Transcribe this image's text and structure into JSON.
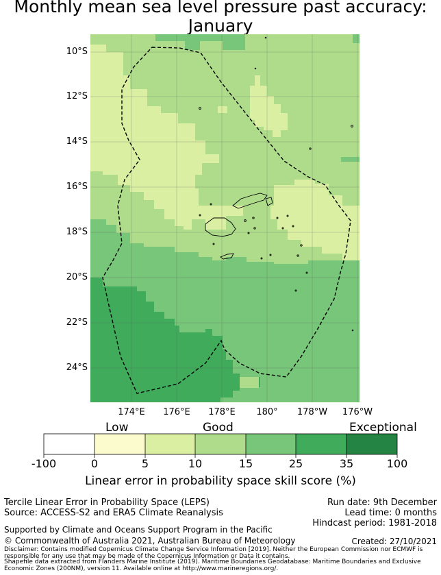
{
  "title": {
    "line1": "Monthly mean sea level pressure past accuracy:",
    "line2": "January"
  },
  "map": {
    "lat_labels": [
      "10°S",
      "12°S",
      "14°S",
      "16°S",
      "18°S",
      "20°S",
      "22°S",
      "24°S"
    ],
    "lon_labels": [
      "174°E",
      "176°E",
      "178°E",
      "180°",
      "178°W",
      "176°W"
    ],
    "category_colors": {
      "low": "#fbfbcd",
      "c5_10": "#dbefa3",
      "c10_15": "#aedc8b",
      "c15_25": "#77c679",
      "c25_35": "#40ab5b",
      "exceptional": "#238443"
    }
  },
  "colorbar": {
    "categories": [
      "Low",
      "Good",
      "Exceptional"
    ],
    "ticks": [
      "-100",
      "0",
      "5",
      "10",
      "15",
      "25",
      "35",
      "100"
    ],
    "colors": [
      "#ffffff",
      "#fbfbcd",
      "#dbefa3",
      "#aedc8b",
      "#77c679",
      "#40ab5b",
      "#238443"
    ],
    "label": "Linear error in probability space skill score (%)"
  },
  "info": {
    "leps": "Tercile Linear Error in Probability Space (LEPS)",
    "source": "Source: ACCESS-S2 and ERA5 Climate Reanalysis",
    "run_date": "Run date: 9th December",
    "lead_time": "Lead time: 0 months",
    "hindcast": "Hindcast period: 1981-2018",
    "supported": "Supported by Climate and Oceans Support Program in the Pacific",
    "copyright": "© Commonwealth of Australia 2021, Australian Bureau of Meteorology",
    "created": "Created: 27/10/2021",
    "disclaimer1": "Disclaimer: Contains modified Copernicus Climate Change Service Information [2019]. Neither the European Commission nor ECMWF is",
    "disclaimer2": "responsible for any use that may be made of the Copernicus Information or Data it contains.",
    "shapefile1": "Shapefile data extracted from Flanders Marine Institute (2019). Maritime Boundaries Geodatabase: Maritime Boundaries and Exclusive",
    "shapefile2": "Economic Zones (200NM), version 11. Available online at http://www.marineregions.org/."
  }
}
